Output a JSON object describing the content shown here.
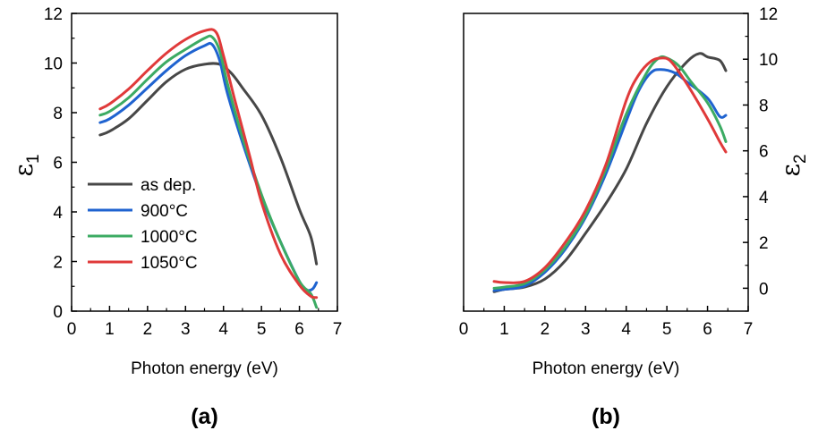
{
  "chart_data": [
    {
      "type": "line",
      "panel_label": "(a)",
      "xlabel": "Photon energy (eV)",
      "ylabel": "ε",
      "ylabel_subscript": "1",
      "xlim": [
        0,
        7
      ],
      "ylim": [
        0,
        12
      ],
      "xticks": [
        "0",
        "1",
        "2",
        "3",
        "4",
        "5",
        "6",
        "7"
      ],
      "yticks": [
        "0",
        "2",
        "4",
        "6",
        "8",
        "10",
        "12"
      ],
      "y_axis_side": "left",
      "grid": false,
      "legend_position": "lower-left",
      "series": [
        {
          "name": "as dep.",
          "color": "#474747",
          "x": [
            0.75,
            1.0,
            1.5,
            2.0,
            2.5,
            3.0,
            3.5,
            3.9,
            4.2,
            4.5,
            5.0,
            5.5,
            6.0,
            6.3,
            6.45
          ],
          "y": [
            7.1,
            7.25,
            7.75,
            8.5,
            9.25,
            9.75,
            9.95,
            9.95,
            9.6,
            9.0,
            7.9,
            6.2,
            4.1,
            3.0,
            1.9
          ]
        },
        {
          "name": "900°C",
          "color": "#1f63d0",
          "x": [
            0.75,
            1.0,
            1.5,
            2.0,
            2.5,
            3.0,
            3.5,
            3.7,
            3.9,
            4.1,
            4.5,
            5.0,
            5.5,
            6.0,
            6.2,
            6.35,
            6.45
          ],
          "y": [
            7.6,
            7.75,
            8.3,
            9.0,
            9.7,
            10.3,
            10.7,
            10.75,
            10.1,
            8.8,
            6.8,
            4.6,
            2.8,
            1.2,
            0.85,
            0.9,
            1.15
          ]
        },
        {
          "name": "1000°C",
          "color": "#3cab63",
          "x": [
            0.75,
            1.0,
            1.5,
            2.0,
            2.5,
            3.0,
            3.5,
            3.7,
            3.9,
            4.1,
            4.5,
            5.0,
            5.5,
            6.0,
            6.3,
            6.45
          ],
          "y": [
            7.9,
            8.05,
            8.6,
            9.35,
            10.05,
            10.55,
            11.0,
            11.05,
            10.5,
            9.2,
            7.0,
            4.7,
            2.8,
            1.2,
            0.7,
            0.15
          ]
        },
        {
          "name": "1050°C",
          "color": "#e03a3a",
          "x": [
            0.75,
            1.0,
            1.5,
            2.0,
            2.5,
            3.0,
            3.5,
            3.8,
            4.0,
            4.3,
            4.7,
            5.0,
            5.5,
            6.0,
            6.3,
            6.45
          ],
          "y": [
            8.15,
            8.35,
            8.95,
            9.7,
            10.4,
            10.95,
            11.3,
            11.25,
            10.3,
            8.5,
            6.2,
            4.4,
            2.3,
            1.05,
            0.6,
            0.55
          ]
        }
      ]
    },
    {
      "type": "line",
      "panel_label": "(b)",
      "xlabel": "Photon energy (eV)",
      "ylabel": "ε",
      "ylabel_subscript": "2",
      "xlim": [
        0,
        7
      ],
      "ylim": [
        -1,
        12
      ],
      "xticks": [
        "0",
        "1",
        "2",
        "3",
        "4",
        "5",
        "6",
        "7"
      ],
      "yticks": [
        "0",
        "2",
        "4",
        "6",
        "8",
        "10",
        "12"
      ],
      "y_axis_side": "right",
      "grid": false,
      "series": [
        {
          "name": "as dep.",
          "color": "#474747",
          "x": [
            0.75,
            1.0,
            1.5,
            2.0,
            2.5,
            3.0,
            3.5,
            4.0,
            4.5,
            5.0,
            5.5,
            5.8,
            6.0,
            6.3,
            6.45
          ],
          "y": [
            -0.15,
            -0.05,
            0.05,
            0.4,
            1.2,
            2.4,
            3.7,
            5.2,
            7.2,
            8.8,
            9.9,
            10.25,
            10.1,
            9.95,
            9.5
          ]
        },
        {
          "name": "900°C",
          "color": "#1f63d0",
          "x": [
            0.75,
            1.0,
            1.5,
            2.0,
            2.5,
            3.0,
            3.5,
            4.0,
            4.3,
            4.6,
            4.85,
            5.2,
            5.5,
            6.0,
            6.3,
            6.45
          ],
          "y": [
            -0.1,
            -0.05,
            0.1,
            0.7,
            1.7,
            3.1,
            5.0,
            7.3,
            8.6,
            9.4,
            9.55,
            9.4,
            9.0,
            8.3,
            7.5,
            7.55
          ]
        },
        {
          "name": "1000°C",
          "color": "#3cab63",
          "x": [
            0.75,
            1.0,
            1.5,
            2.0,
            2.5,
            3.0,
            3.5,
            4.0,
            4.5,
            4.8,
            5.0,
            5.3,
            5.6,
            6.0,
            6.3,
            6.45
          ],
          "y": [
            0.0,
            0.05,
            0.2,
            0.8,
            1.8,
            3.2,
            5.2,
            7.6,
            9.4,
            10.05,
            10.05,
            9.7,
            9.0,
            8.1,
            7.1,
            6.4
          ]
        },
        {
          "name": "1050°C",
          "color": "#e03a3a",
          "x": [
            0.75,
            1.0,
            1.5,
            2.0,
            2.5,
            3.0,
            3.5,
            4.0,
            4.3,
            4.6,
            4.85,
            5.1,
            5.5,
            6.0,
            6.3,
            6.45
          ],
          "y": [
            0.3,
            0.25,
            0.3,
            0.9,
            2.0,
            3.4,
            5.4,
            8.2,
            9.3,
            9.9,
            10.05,
            9.9,
            8.9,
            7.4,
            6.4,
            5.95
          ]
        }
      ]
    }
  ]
}
